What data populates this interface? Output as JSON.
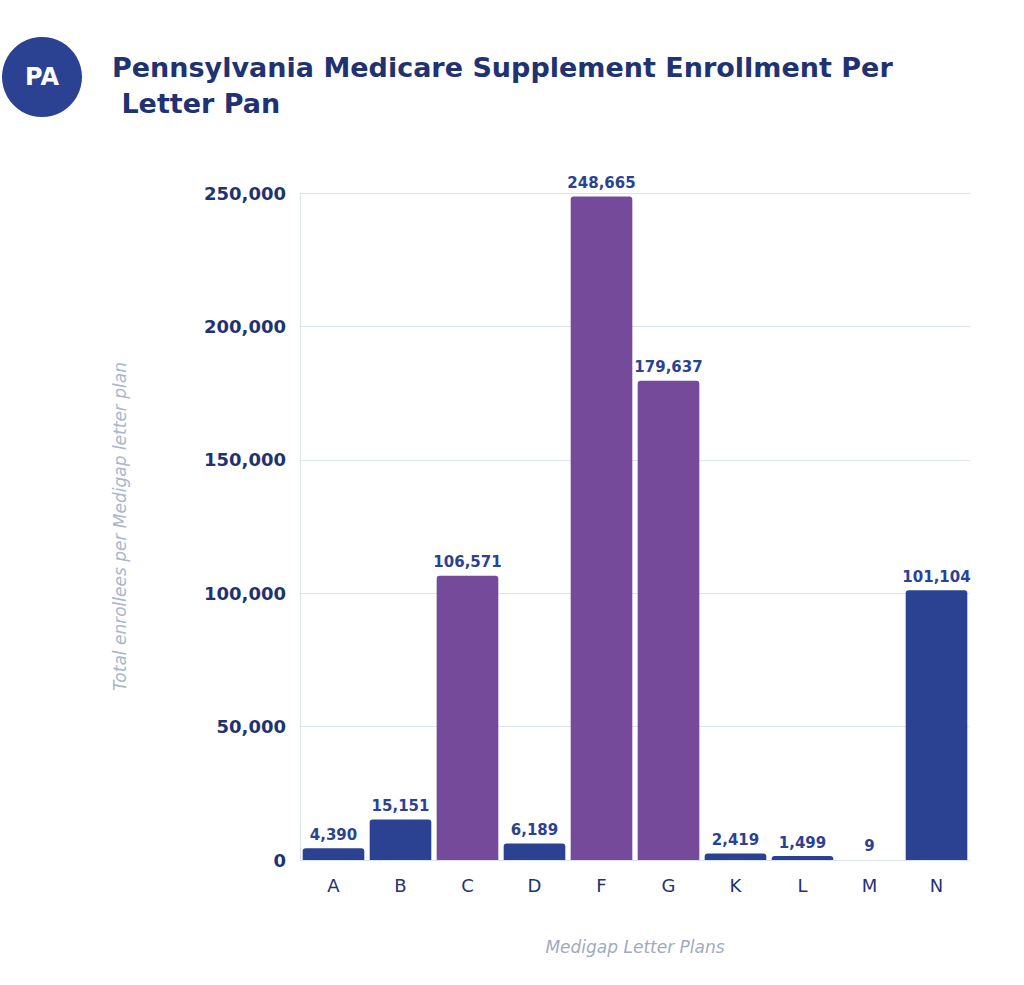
{
  "chart_data": {
    "type": "bar",
    "title": "Pennsylvania Medicare Supplement Enrollment Per Letter Pan",
    "badge": "PA",
    "x_label": "Medigap Letter Plans",
    "y_label": "Total enrollees per Medigap letter plan",
    "categories": [
      "A",
      "B",
      "C",
      "D",
      "F",
      "G",
      "K",
      "L",
      "M",
      "N"
    ],
    "values": [
      4390,
      15151,
      106571,
      6189,
      248665,
      179637,
      2419,
      1499,
      9,
      101104
    ],
    "value_labels": [
      "4,390",
      "15,151",
      "106,571",
      "6,189",
      "248,665",
      "179,637",
      "2,419",
      "1,499",
      "9",
      "101,104"
    ],
    "colors": [
      "#2b4293",
      "#2b4293",
      "#764a9a",
      "#2b4293",
      "#764a9a",
      "#764a9a",
      "#2b4293",
      "#2b4293",
      "#2b4293",
      "#2b4293"
    ],
    "ylim": [
      0,
      250000
    ],
    "yticks": [
      0,
      {
        "value": 50000,
        "label": "50,000"
      },
      {
        "value": 100000,
        "label": "100,000"
      },
      {
        "value": 150000,
        "label": "150,000"
      },
      {
        "value": 200000,
        "label": "200,000"
      },
      {
        "value": 250000,
        "label": "250,000"
      }
    ],
    "grid": true,
    "data_labels": true
  }
}
